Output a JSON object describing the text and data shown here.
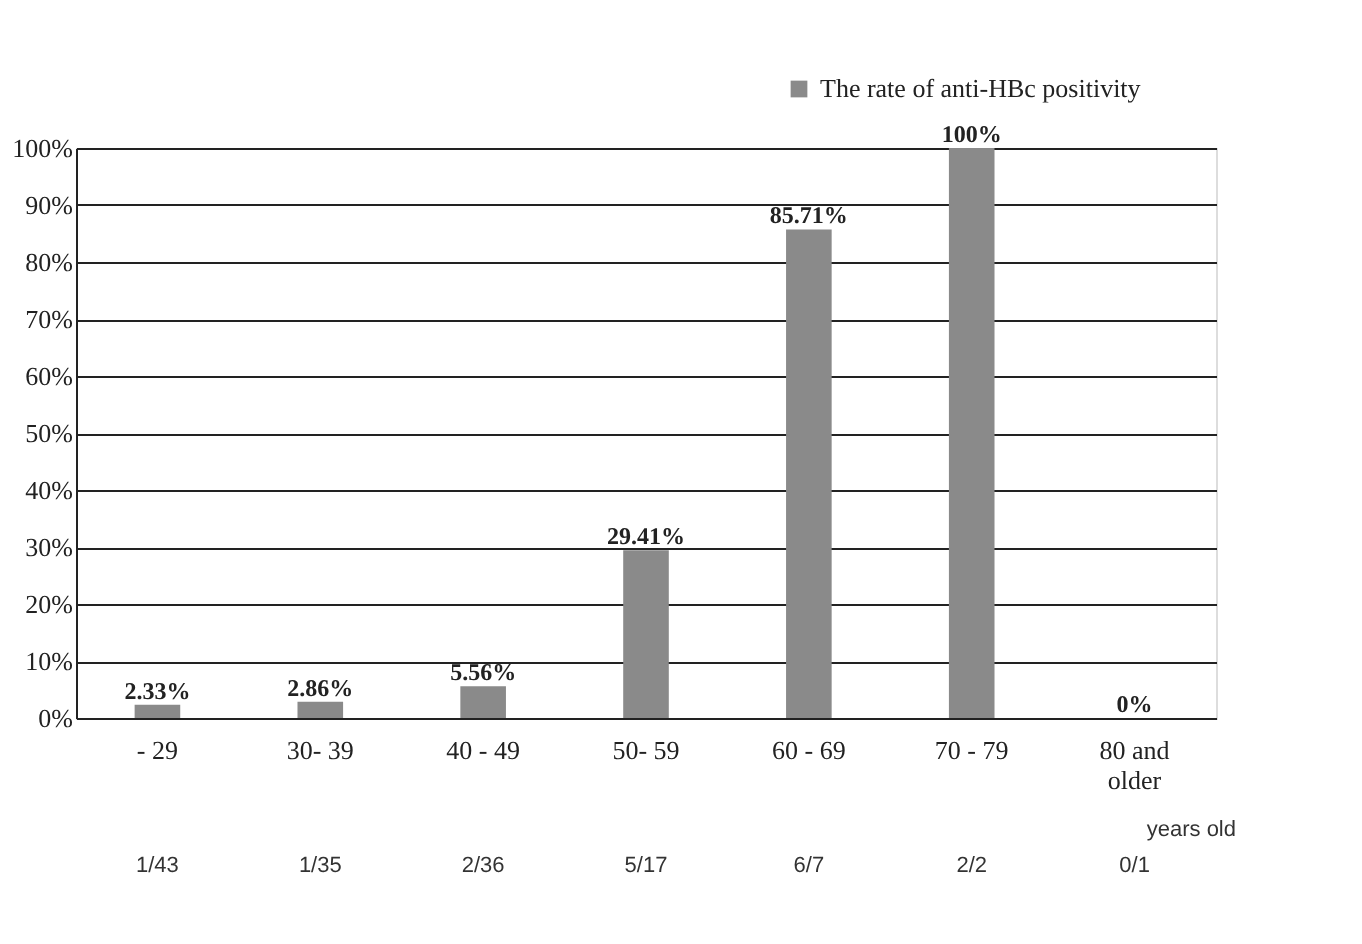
{
  "chart_data": {
    "type": "bar",
    "categories": [
      "- 29",
      "30- 39",
      "40 - 49",
      "50- 59",
      "60 - 69",
      "70 - 79",
      "80 and\nolder"
    ],
    "series": [
      {
        "name": "The rate of anti-HBc positivity",
        "color": "#8a8a8a",
        "values": [
          2.33,
          2.86,
          5.56,
          29.41,
          85.71,
          100,
          0
        ],
        "value_labels": [
          "2.33%",
          "2.86%",
          "5.56%",
          "29.41%",
          "85.71%",
          "100%",
          "0%"
        ]
      }
    ],
    "ylim": [
      0,
      100
    ],
    "yticks": [
      {
        "value": 0,
        "label": "0%"
      },
      {
        "value": 10,
        "label": "10%"
      },
      {
        "value": 20,
        "label": "20%"
      },
      {
        "value": 30,
        "label": "30%"
      },
      {
        "value": 40,
        "label": "40%"
      },
      {
        "value": 50,
        "label": "50%"
      },
      {
        "value": 60,
        "label": "60%"
      },
      {
        "value": 70,
        "label": "70%"
      },
      {
        "value": 80,
        "label": "80%"
      },
      {
        "value": 90,
        "label": "90%"
      },
      {
        "value": 100,
        "label": "100%"
      }
    ],
    "grid": "y",
    "legend": "top right",
    "annotations": [
      "years old",
      "1/43",
      "1/35",
      "2/36",
      "5/17",
      "6/7",
      "2/2",
      "0/1"
    ]
  }
}
